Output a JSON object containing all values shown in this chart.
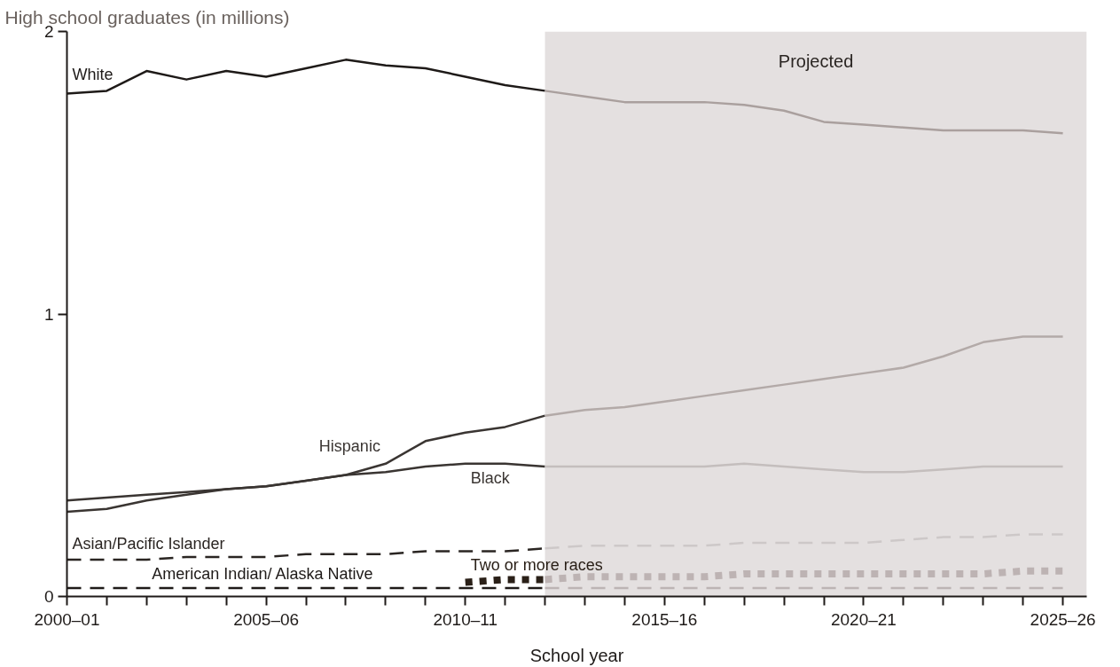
{
  "chart_data": {
    "type": "line",
    "title": "High school graduates (in millions)",
    "xlabel": "School year",
    "categories": [
      "2000–01",
      null,
      null,
      null,
      null,
      "2005–06",
      null,
      null,
      null,
      null,
      "2010–11",
      null,
      null,
      null,
      null,
      "2015–16",
      null,
      null,
      null,
      null,
      "2020–21",
      null,
      null,
      null,
      null,
      "2025–26"
    ],
    "ylim": [
      0,
      2
    ],
    "yticks": [
      0,
      1,
      2
    ],
    "grid": false,
    "marker": "none",
    "annotations": [
      "Projected"
    ],
    "series": [
      {
        "name": "White",
        "color": "#1e1a18",
        "line_style": "solid",
        "values": [
          1.78,
          1.79,
          1.86,
          1.83,
          1.86,
          1.84,
          1.87,
          1.9,
          1.88,
          1.87,
          1.84,
          1.81,
          1.79,
          null,
          null,
          null,
          null,
          null,
          null,
          null,
          null,
          null,
          null,
          null,
          null,
          null
        ]
      },
      {
        "color": "#aaa09e",
        "line_style": "solid",
        "values": [
          null,
          null,
          null,
          null,
          null,
          null,
          null,
          null,
          null,
          null,
          null,
          null,
          1.79,
          1.77,
          1.75,
          1.75,
          1.75,
          1.74,
          1.72,
          1.68,
          1.67,
          1.66,
          1.65,
          1.65,
          1.65,
          1.64
        ]
      },
      {
        "name": "Hispanic",
        "color": "#3a3532",
        "line_style": "solid",
        "values": [
          0.3,
          0.31,
          0.34,
          0.36,
          0.38,
          0.39,
          0.41,
          0.43,
          0.47,
          0.55,
          0.58,
          0.6,
          0.64,
          null,
          null,
          null,
          null,
          null,
          null,
          null,
          null,
          null,
          null,
          null,
          null,
          null
        ]
      },
      {
        "color": "#b3aaa8",
        "line_style": "solid",
        "values": [
          null,
          null,
          null,
          null,
          null,
          null,
          null,
          null,
          null,
          null,
          null,
          null,
          0.64,
          0.66,
          0.67,
          0.69,
          0.71,
          0.73,
          0.75,
          0.77,
          0.79,
          0.81,
          0.85,
          0.9,
          0.92,
          0.92
        ]
      },
      {
        "name": "Black",
        "color": "#3a3532",
        "line_style": "solid",
        "values": [
          0.34,
          0.35,
          0.36,
          0.37,
          0.38,
          0.39,
          0.41,
          0.43,
          0.44,
          0.46,
          0.47,
          0.47,
          0.46,
          null,
          null,
          null,
          null,
          null,
          null,
          null,
          null,
          null,
          null,
          null,
          null,
          null
        ]
      },
      {
        "color": "#c4bebd",
        "line_style": "solid",
        "values": [
          null,
          null,
          null,
          null,
          null,
          null,
          null,
          null,
          null,
          null,
          null,
          null,
          0.46,
          0.46,
          0.46,
          0.46,
          0.46,
          0.47,
          0.46,
          0.45,
          0.44,
          0.44,
          0.45,
          0.46,
          0.46,
          0.46
        ]
      },
      {
        "name": "Asian/Pacific Islander",
        "color": "#2a2522",
        "line_style": "dashed",
        "values": [
          0.13,
          0.13,
          0.13,
          0.14,
          0.14,
          0.14,
          0.15,
          0.15,
          0.15,
          0.16,
          0.16,
          0.16,
          0.17,
          null,
          null,
          null,
          null,
          null,
          null,
          null,
          null,
          null,
          null,
          null,
          null,
          null
        ]
      },
      {
        "color": "#cdc8c8",
        "line_style": "dashed",
        "values": [
          null,
          null,
          null,
          null,
          null,
          null,
          null,
          null,
          null,
          null,
          null,
          null,
          0.17,
          0.18,
          0.18,
          0.18,
          0.18,
          0.19,
          0.19,
          0.19,
          0.19,
          0.2,
          0.21,
          0.21,
          0.22,
          0.22
        ]
      },
      {
        "name": "American Indian/ Alaska Native",
        "color": "#1e1a18",
        "line_style": "dashed",
        "values": [
          0.03,
          0.03,
          0.03,
          0.03,
          0.03,
          0.03,
          0.03,
          0.03,
          0.03,
          0.03,
          0.03,
          0.03,
          0.03,
          null,
          null,
          null,
          null,
          null,
          null,
          null,
          null,
          null,
          null,
          null,
          null,
          null
        ]
      },
      {
        "color": "#bcb4b4",
        "line_style": "dashed",
        "values": [
          null,
          null,
          null,
          null,
          null,
          null,
          null,
          null,
          null,
          null,
          null,
          null,
          0.03,
          0.03,
          0.03,
          0.03,
          0.03,
          0.03,
          0.03,
          0.03,
          0.03,
          0.03,
          0.03,
          0.03,
          0.03,
          0.03
        ]
      },
      {
        "name": "Two or more races",
        "color": "#2a2018",
        "line_style": "dotted",
        "values": [
          null,
          null,
          null,
          null,
          null,
          null,
          null,
          null,
          null,
          null,
          0.05,
          0.06,
          0.06,
          null,
          null,
          null,
          null,
          null,
          null,
          null,
          null,
          null,
          null,
          null,
          null,
          null
        ]
      },
      {
        "color": "#bdb3b3",
        "line_style": "dotted",
        "values": [
          null,
          null,
          null,
          null,
          null,
          null,
          null,
          null,
          null,
          null,
          null,
          null,
          0.06,
          0.07,
          0.07,
          0.07,
          0.07,
          0.08,
          0.08,
          0.08,
          0.08,
          0.08,
          0.08,
          0.08,
          0.09,
          0.09
        ]
      }
    ]
  }
}
